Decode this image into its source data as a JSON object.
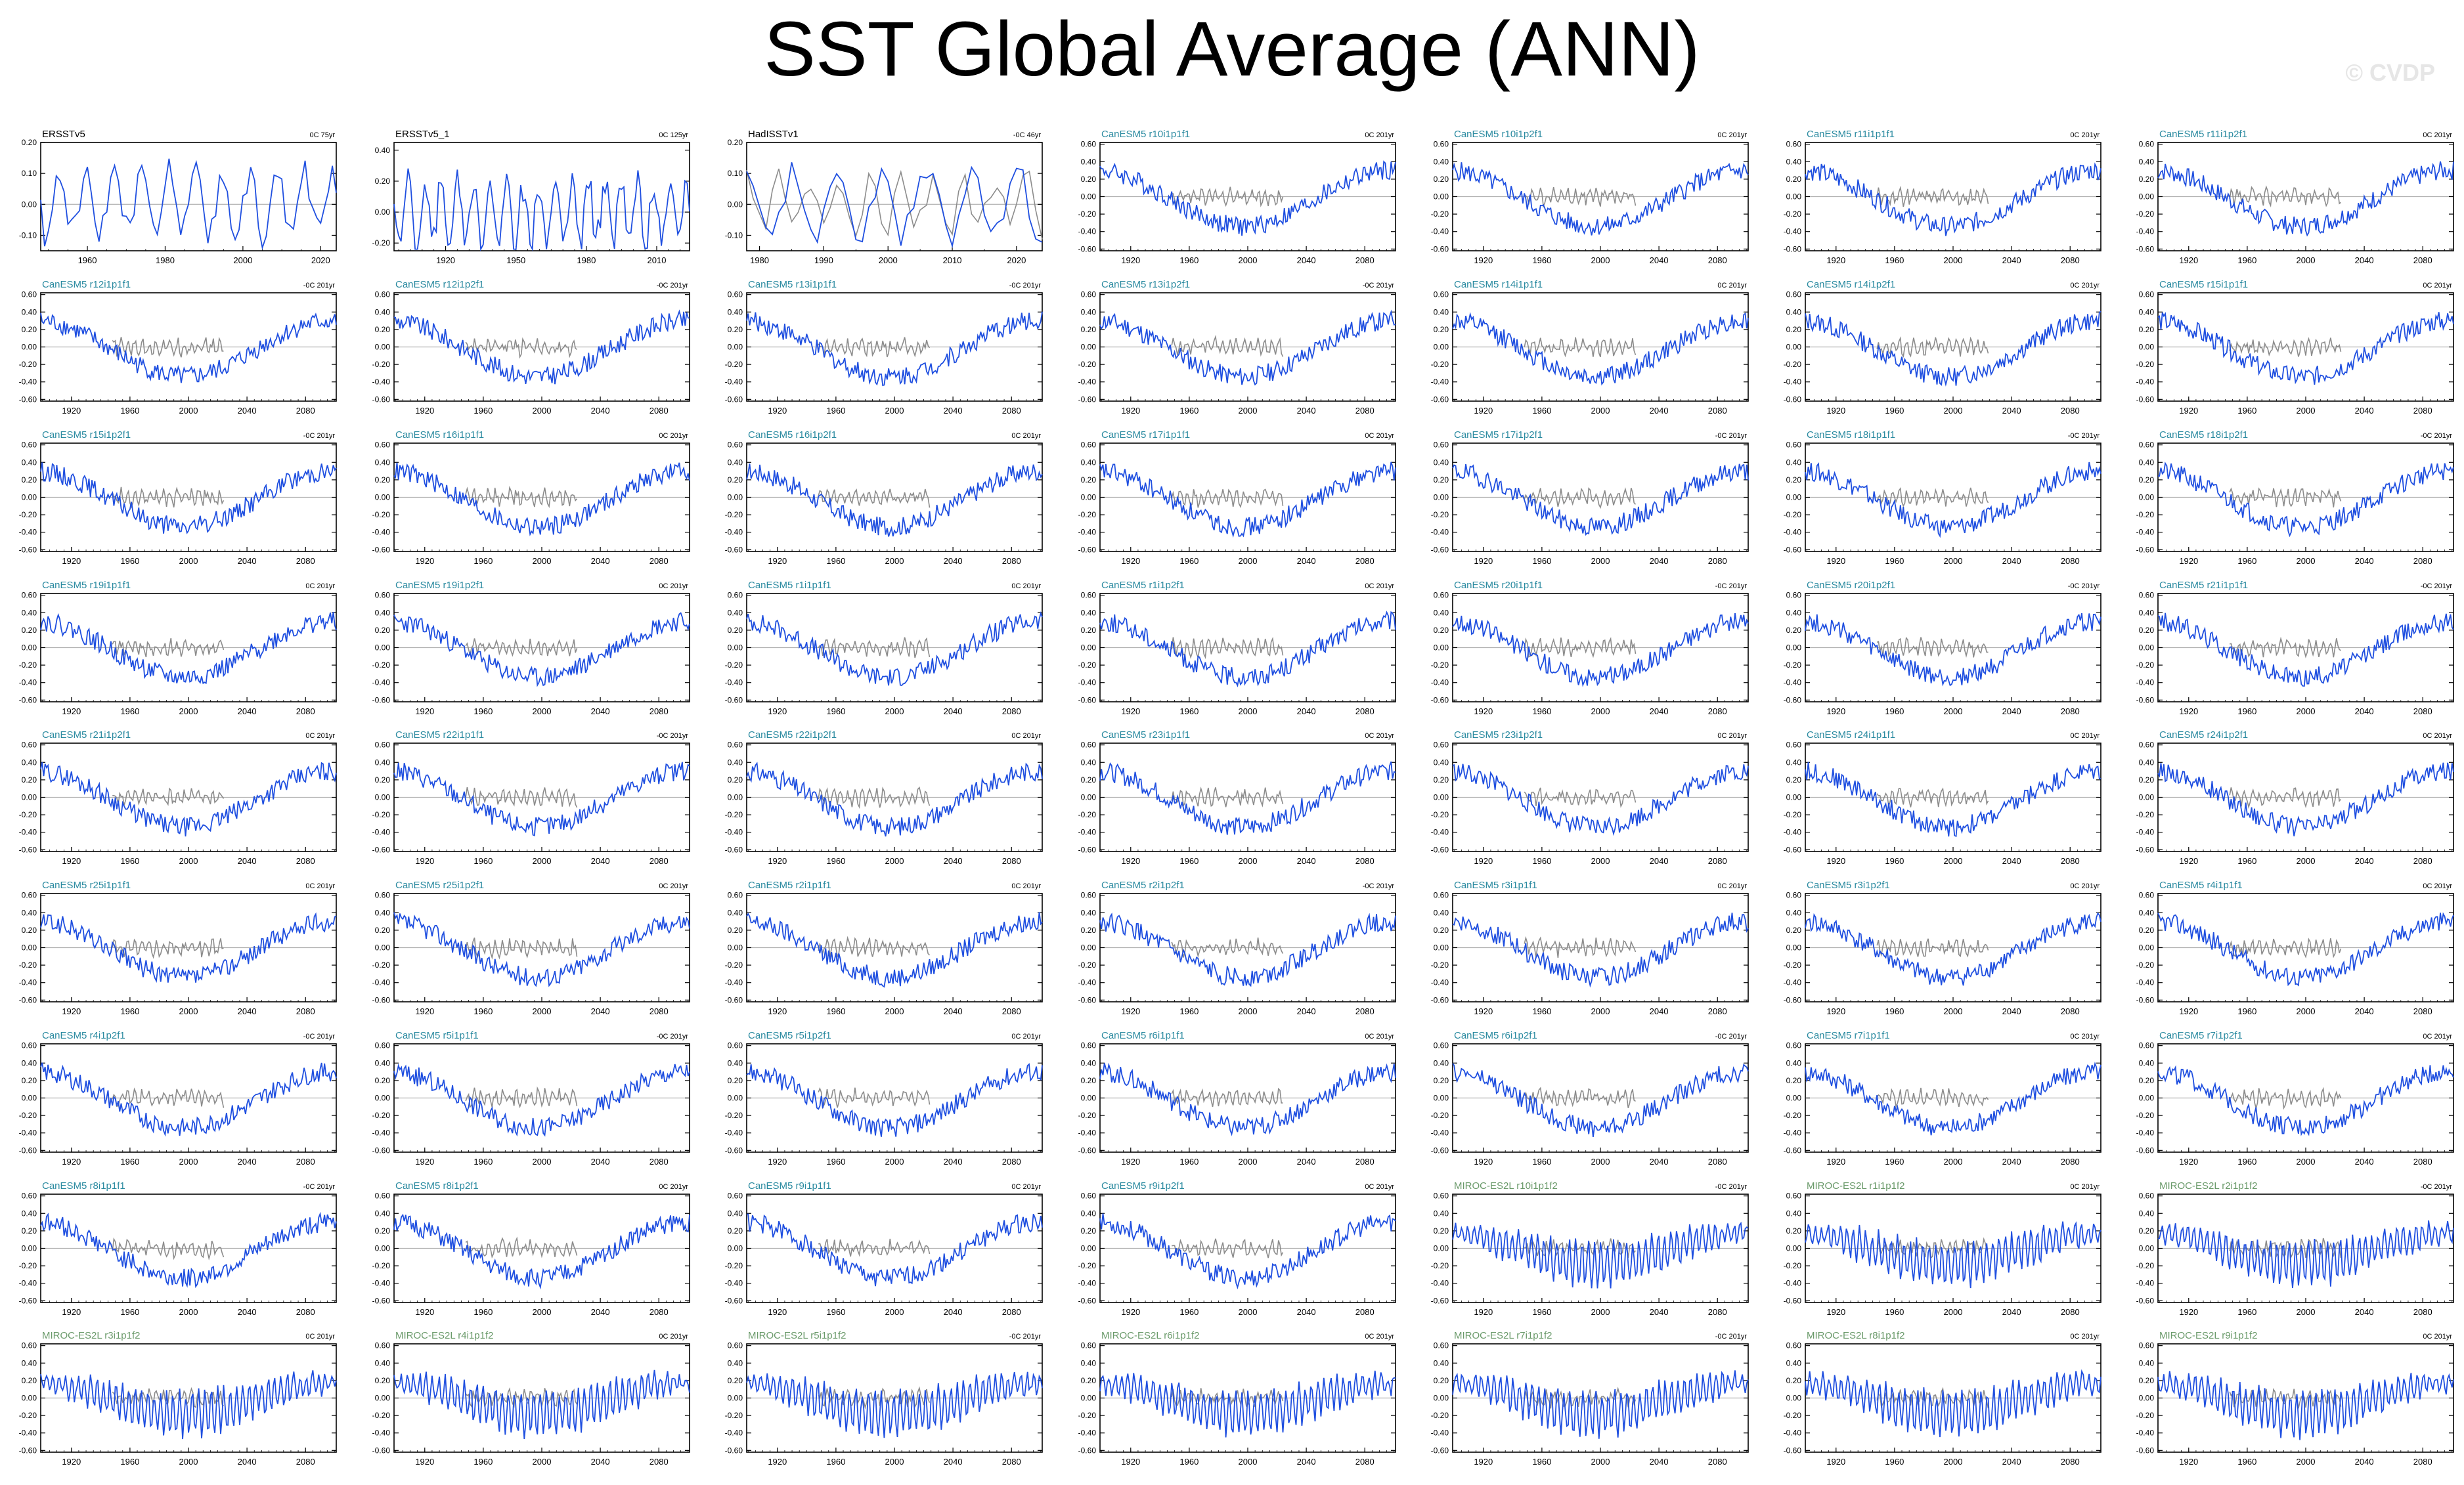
{
  "title": "SST Global Average (ANN)",
  "watermark": "© CVDP",
  "colors": {
    "series": "#1f4fe0",
    "reference": "#8c8c8c",
    "obs_label": "#000000",
    "canesm5_label": "#2a8aa0",
    "miroc_label": "#6a9a6a"
  },
  "chart_data": [
    {
      "type": "line",
      "name": "ERSSTv5",
      "trend": "0C 75yr",
      "kind": "obs",
      "xlim": [
        1948,
        2024
      ],
      "xticks": [
        1960,
        1980,
        2000,
        2020
      ],
      "ylim": [
        -0.15,
        0.2
      ],
      "yticks": [
        "0.20",
        "0.10",
        "0.00",
        "-0.10"
      ],
      "seed": 1,
      "series": [
        {
          "name": "ERSSTv5",
          "values": [
            0.12,
            -0.05,
            0.08,
            -0.12,
            0.1,
            0.04,
            -0.08,
            0.11,
            0.02,
            -0.14,
            0.09,
            0.13,
            -0.02,
            0.06,
            -0.1,
            0.12,
            0.0,
            0.08,
            -0.06,
            0.1,
            0.14,
            -0.04,
            0.05,
            -0.12,
            0.08,
            0.16
          ]
        }
      ]
    },
    {
      "type": "line",
      "name": "ERSSTv5_1",
      "trend": "0C 125yr",
      "kind": "obs",
      "xlim": [
        1898,
        2024
      ],
      "xticks": [
        1920,
        1950,
        1980,
        2010
      ],
      "ylim": [
        -0.25,
        0.45
      ],
      "yticks": [
        "0.40",
        "0.20",
        "0.00",
        "-0.20"
      ],
      "seed": 2
    },
    {
      "type": "line",
      "name": "HadISSTv1",
      "trend": "-0C 46yr",
      "kind": "obs",
      "xlim": [
        1978,
        2024
      ],
      "xticks": [
        1980,
        1990,
        2000,
        2010,
        2020
      ],
      "ylim": [
        -0.15,
        0.2
      ],
      "yticks": [
        "0.20",
        "0.10",
        "0.00",
        "-0.10"
      ],
      "seed": 3
    },
    {
      "type": "line",
      "name": "CanESM5 r10i1p1f1",
      "trend": "0C 201yr",
      "kind": "can",
      "seed": 4
    },
    {
      "type": "line",
      "name": "CanESM5 r10i1p2f1",
      "trend": "0C 201yr",
      "kind": "can",
      "seed": 5
    },
    {
      "type": "line",
      "name": "CanESM5 r11i1p1f1",
      "trend": "0C 201yr",
      "kind": "can",
      "seed": 6
    },
    {
      "type": "line",
      "name": "CanESM5 r11i1p2f1",
      "trend": "0C 201yr",
      "kind": "can",
      "seed": 7
    },
    {
      "type": "line",
      "name": "CanESM5 r12i1p1f1",
      "trend": "-0C 201yr",
      "kind": "can",
      "seed": 8
    },
    {
      "type": "line",
      "name": "CanESM5 r12i1p2f1",
      "trend": "-0C 201yr",
      "kind": "can",
      "seed": 9
    },
    {
      "type": "line",
      "name": "CanESM5 r13i1p1f1",
      "trend": "-0C 201yr",
      "kind": "can",
      "seed": 10
    },
    {
      "type": "line",
      "name": "CanESM5 r13i1p2f1",
      "trend": "-0C 201yr",
      "kind": "can",
      "seed": 11
    },
    {
      "type": "line",
      "name": "CanESM5 r14i1p1f1",
      "trend": "0C 201yr",
      "kind": "can",
      "seed": 12
    },
    {
      "type": "line",
      "name": "CanESM5 r14i1p2f1",
      "trend": "0C 201yr",
      "kind": "can",
      "seed": 13
    },
    {
      "type": "line",
      "name": "CanESM5 r15i1p1f1",
      "trend": "0C 201yr",
      "kind": "can",
      "seed": 14
    },
    {
      "type": "line",
      "name": "CanESM5 r15i1p2f1",
      "trend": "-0C 201yr",
      "kind": "can",
      "seed": 15
    },
    {
      "type": "line",
      "name": "CanESM5 r16i1p1f1",
      "trend": "0C 201yr",
      "kind": "can",
      "seed": 16
    },
    {
      "type": "line",
      "name": "CanESM5 r16i1p2f1",
      "trend": "0C 201yr",
      "kind": "can",
      "seed": 17
    },
    {
      "type": "line",
      "name": "CanESM5 r17i1p1f1",
      "trend": "0C 201yr",
      "kind": "can",
      "seed": 18
    },
    {
      "type": "line",
      "name": "CanESM5 r17i1p2f1",
      "trend": "-0C 201yr",
      "kind": "can",
      "seed": 19
    },
    {
      "type": "line",
      "name": "CanESM5 r18i1p1f1",
      "trend": "-0C 201yr",
      "kind": "can",
      "seed": 20
    },
    {
      "type": "line",
      "name": "CanESM5 r18i1p2f1",
      "trend": "-0C 201yr",
      "kind": "can",
      "seed": 21
    },
    {
      "type": "line",
      "name": "CanESM5 r19i1p1f1",
      "trend": "0C 201yr",
      "kind": "can",
      "seed": 22
    },
    {
      "type": "line",
      "name": "CanESM5 r19i1p2f1",
      "trend": "0C 201yr",
      "kind": "can",
      "seed": 23
    },
    {
      "type": "line",
      "name": "CanESM5 r1i1p1f1",
      "trend": "0C 201yr",
      "kind": "can",
      "seed": 24
    },
    {
      "type": "line",
      "name": "CanESM5 r1i1p2f1",
      "trend": "0C 201yr",
      "kind": "can",
      "seed": 25
    },
    {
      "type": "line",
      "name": "CanESM5 r20i1p1f1",
      "trend": "-0C 201yr",
      "kind": "can",
      "seed": 26
    },
    {
      "type": "line",
      "name": "CanESM5 r20i1p2f1",
      "trend": "-0C 201yr",
      "kind": "can",
      "seed": 27
    },
    {
      "type": "line",
      "name": "CanESM5 r21i1p1f1",
      "trend": "-0C 201yr",
      "kind": "can",
      "seed": 28
    },
    {
      "type": "line",
      "name": "CanESM5 r21i1p2f1",
      "trend": "0C 201yr",
      "kind": "can",
      "seed": 29
    },
    {
      "type": "line",
      "name": "CanESM5 r22i1p1f1",
      "trend": "-0C 201yr",
      "kind": "can",
      "seed": 30
    },
    {
      "type": "line",
      "name": "CanESM5 r22i1p2f1",
      "trend": "0C 201yr",
      "kind": "can",
      "seed": 31
    },
    {
      "type": "line",
      "name": "CanESM5 r23i1p1f1",
      "trend": "0C 201yr",
      "kind": "can",
      "seed": 32
    },
    {
      "type": "line",
      "name": "CanESM5 r23i1p2f1",
      "trend": "0C 201yr",
      "kind": "can",
      "seed": 33
    },
    {
      "type": "line",
      "name": "CanESM5 r24i1p1f1",
      "trend": "0C 201yr",
      "kind": "can",
      "seed": 34
    },
    {
      "type": "line",
      "name": "CanESM5 r24i1p2f1",
      "trend": "0C 201yr",
      "kind": "can",
      "seed": 35
    },
    {
      "type": "line",
      "name": "CanESM5 r25i1p1f1",
      "trend": "0C 201yr",
      "kind": "can",
      "seed": 36
    },
    {
      "type": "line",
      "name": "CanESM5 r25i1p2f1",
      "trend": "0C 201yr",
      "kind": "can",
      "seed": 37
    },
    {
      "type": "line",
      "name": "CanESM5 r2i1p1f1",
      "trend": "0C 201yr",
      "kind": "can",
      "seed": 38
    },
    {
      "type": "line",
      "name": "CanESM5 r2i1p2f1",
      "trend": "-0C 201yr",
      "kind": "can",
      "seed": 39
    },
    {
      "type": "line",
      "name": "CanESM5 r3i1p1f1",
      "trend": "0C 201yr",
      "kind": "can",
      "seed": 40
    },
    {
      "type": "line",
      "name": "CanESM5 r3i1p2f1",
      "trend": "0C 201yr",
      "kind": "can",
      "seed": 41
    },
    {
      "type": "line",
      "name": "CanESM5 r4i1p1f1",
      "trend": "0C 201yr",
      "kind": "can",
      "seed": 42
    },
    {
      "type": "line",
      "name": "CanESM5 r4i1p2f1",
      "trend": "-0C 201yr",
      "kind": "can",
      "seed": 43
    },
    {
      "type": "line",
      "name": "CanESM5 r5i1p1f1",
      "trend": "-0C 201yr",
      "kind": "can",
      "seed": 44
    },
    {
      "type": "line",
      "name": "CanESM5 r5i1p2f1",
      "trend": "0C 201yr",
      "kind": "can",
      "seed": 45
    },
    {
      "type": "line",
      "name": "CanESM5 r6i1p1f1",
      "trend": "0C 201yr",
      "kind": "can",
      "seed": 46
    },
    {
      "type": "line",
      "name": "CanESM5 r6i1p2f1",
      "trend": "-0C 201yr",
      "kind": "can",
      "seed": 47
    },
    {
      "type": "line",
      "name": "CanESM5 r7i1p1f1",
      "trend": "0C 201yr",
      "kind": "can",
      "seed": 48
    },
    {
      "type": "line",
      "name": "CanESM5 r7i1p2f1",
      "trend": "0C 201yr",
      "kind": "can",
      "seed": 49
    },
    {
      "type": "line",
      "name": "CanESM5 r8i1p1f1",
      "trend": "-0C 201yr",
      "kind": "can",
      "seed": 50
    },
    {
      "type": "line",
      "name": "CanESM5 r8i1p2f1",
      "trend": "0C 201yr",
      "kind": "can",
      "seed": 51
    },
    {
      "type": "line",
      "name": "CanESM5 r9i1p1f1",
      "trend": "0C 201yr",
      "kind": "can",
      "seed": 52
    },
    {
      "type": "line",
      "name": "CanESM5 r9i1p2f1",
      "trend": "0C 201yr",
      "kind": "can",
      "seed": 53
    },
    {
      "type": "line",
      "name": "MIROC-ES2L r10i1p1f2",
      "trend": "-0C 201yr",
      "kind": "miroc",
      "seed": 54
    },
    {
      "type": "line",
      "name": "MIROC-ES2L r1i1p1f2",
      "trend": "0C 201yr",
      "kind": "miroc",
      "seed": 55
    },
    {
      "type": "line",
      "name": "MIROC-ES2L r2i1p1f2",
      "trend": "-0C 201yr",
      "kind": "miroc",
      "seed": 56
    },
    {
      "type": "line",
      "name": "MIROC-ES2L r3i1p1f2",
      "trend": "0C 201yr",
      "kind": "miroc",
      "seed": 57
    },
    {
      "type": "line",
      "name": "MIROC-ES2L r4i1p1f2",
      "trend": "0C 201yr",
      "kind": "miroc",
      "seed": 58
    },
    {
      "type": "line",
      "name": "MIROC-ES2L r5i1p1f2",
      "trend": "-0C 201yr",
      "kind": "miroc",
      "seed": 59
    },
    {
      "type": "line",
      "name": "MIROC-ES2L r6i1p1f2",
      "trend": "0C 201yr",
      "kind": "miroc",
      "seed": 60
    },
    {
      "type": "line",
      "name": "MIROC-ES2L r7i1p1f2",
      "trend": "-0C 201yr",
      "kind": "miroc",
      "seed": 61
    },
    {
      "type": "line",
      "name": "MIROC-ES2L r8i1p1f2",
      "trend": "0C 201yr",
      "kind": "miroc",
      "seed": 62
    },
    {
      "type": "line",
      "name": "MIROC-ES2L r9i1p1f2",
      "trend": "0C 201yr",
      "kind": "miroc",
      "seed": 63
    }
  ],
  "model_axes": {
    "xlim": [
      1899,
      2101
    ],
    "xticks": [
      1920,
      1960,
      2000,
      2040,
      2080
    ],
    "ylim": [
      -0.62,
      0.62
    ],
    "yticks": [
      "0.60",
      "0.40",
      "0.20",
      "0.00",
      "-0.20",
      "-0.40",
      "-0.60"
    ]
  }
}
